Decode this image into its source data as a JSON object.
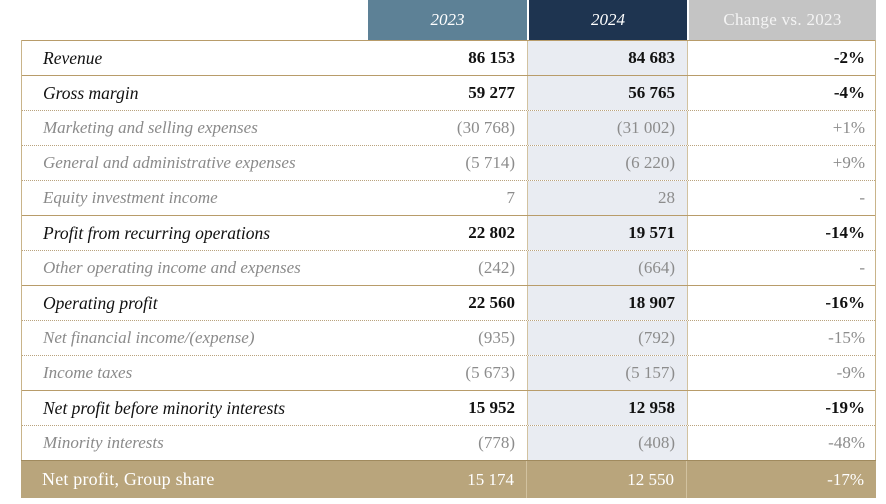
{
  "header": {
    "col_2023": "2023",
    "col_2024": "2024",
    "col_change": "Change vs. 2023"
  },
  "rows": [
    {
      "label": "Revenue",
      "y2023": "86 153",
      "y2024": "84 683",
      "change": "-2%",
      "style": "bold"
    },
    {
      "label": "Gross margin",
      "y2023": "59 277",
      "y2024": "56 765",
      "change": "-4%",
      "style": "bold"
    },
    {
      "label": "Marketing and selling expenses",
      "y2023": "(30 768)",
      "y2024": "(31 002)",
      "change": "+1%",
      "style": "sub"
    },
    {
      "label": "General and administrative expenses",
      "y2023": "(5 714)",
      "y2024": "(6 220)",
      "change": "+9%",
      "style": "sub"
    },
    {
      "label": "Equity investment income",
      "y2023": "7",
      "y2024": "28",
      "change": "-",
      "style": "sub"
    },
    {
      "label": "Profit from recurring operations",
      "y2023": "22 802",
      "y2024": "19 571",
      "change": "-14%",
      "style": "bold"
    },
    {
      "label": "Other operating income and expenses",
      "y2023": "(242)",
      "y2024": "(664)",
      "change": "-",
      "style": "sub"
    },
    {
      "label": "Operating profit",
      "y2023": "22 560",
      "y2024": "18 907",
      "change": "-16%",
      "style": "bold"
    },
    {
      "label": "Net financial income/(expense)",
      "y2023": "(935)",
      "y2024": "(792)",
      "change": "-15%",
      "style": "sub"
    },
    {
      "label": "Income taxes",
      "y2023": "(5 673)",
      "y2024": "(5 157)",
      "change": "-9%",
      "style": "sub"
    },
    {
      "label": "Net profit before minority interests",
      "y2023": "15 952",
      "y2024": "12 958",
      "change": "-19%",
      "style": "bold"
    },
    {
      "label": "Minority interests",
      "y2023": "(778)",
      "y2024": "(408)",
      "change": "-48%",
      "style": "sub"
    }
  ],
  "total": {
    "label": "Net profit, Group share",
    "y2023": "15 174",
    "y2024": "12 550",
    "change": "-17%"
  },
  "colors": {
    "header_2023": "#5d8196",
    "header_2024": "#1e3450",
    "header_change": "#c4c4c4",
    "total_band": "#b9a57c",
    "rule": "#b89c6a"
  }
}
